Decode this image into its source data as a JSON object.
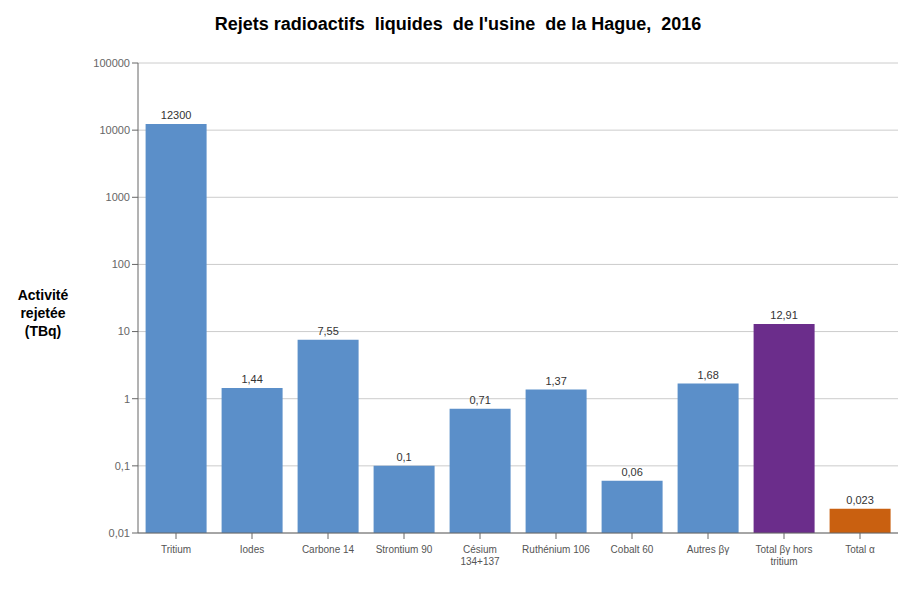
{
  "chart_data": {
    "type": "bar",
    "title": "Rejets radioactifs  liquides  de l'usine  de la Hague,  2016",
    "ylabel": "Activité\nrejetée\n(TBq)",
    "categories": [
      "Tritium",
      "Iodes",
      "Carbone 14",
      "Strontium 90",
      "Césium\n134+137",
      "Ruthénium 106",
      "Cobalt 60",
      "Autres βγ",
      "Total βγ hors\ntritium",
      "Total α"
    ],
    "values": [
      12300,
      1.44,
      7.55,
      0.1,
      0.71,
      1.37,
      0.06,
      1.68,
      12.91,
      0.023
    ],
    "value_labels": [
      "12300",
      "1,44",
      "7,55",
      "0,1",
      "0,71",
      "1,37",
      "0,06",
      "1,68",
      "12,91",
      "0,023"
    ],
    "data_labels": true,
    "colors": [
      "#5b8fc9",
      "#5b8fc9",
      "#5b8fc9",
      "#5b8fc9",
      "#5b8fc9",
      "#5b8fc9",
      "#5b8fc9",
      "#5b8fc9",
      "#6b2d8b",
      "#c96010"
    ],
    "log": "y",
    "ylim": [
      0.01,
      100000
    ],
    "yticks": [
      {
        "value": 0.01,
        "label": "0,01"
      },
      {
        "value": 0.1,
        "label": "0,1"
      },
      1,
      10,
      100,
      1000,
      10000,
      100000
    ],
    "grid": true
  }
}
